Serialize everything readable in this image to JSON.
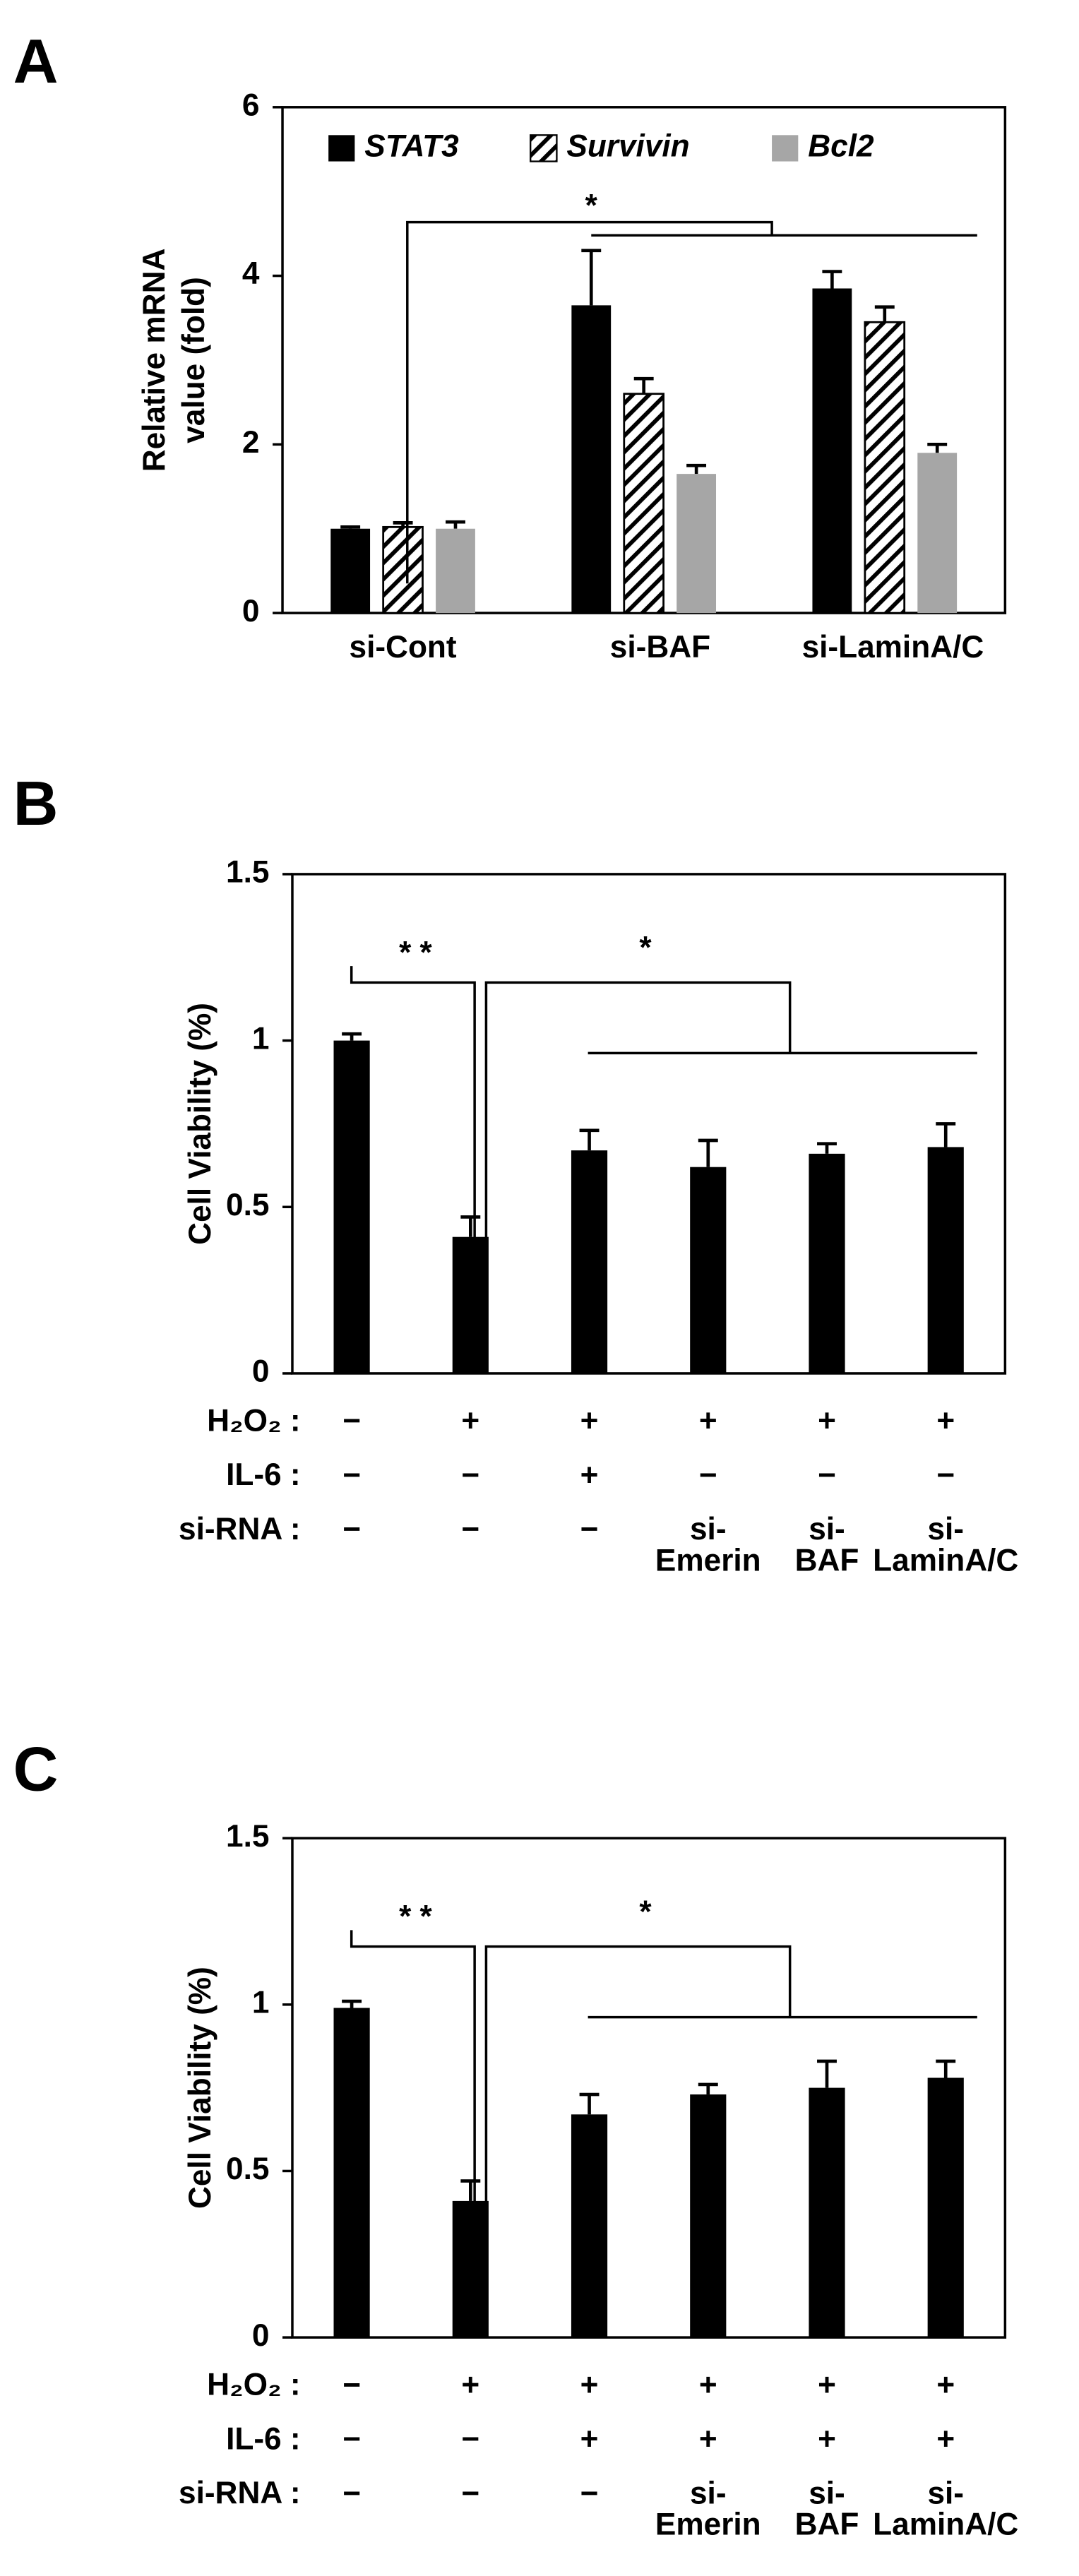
{
  "chart_data": [
    {
      "type": "bar",
      "panel_label": "A",
      "y_label": [
        "Relative mRNA",
        "value (fold)"
      ],
      "categories": [
        "si-Cont",
        "si-BAF",
        "si-LaminA/C"
      ],
      "series": [
        {
          "name": "STAT3",
          "color": "#000000",
          "values": [
            1.0,
            3.65,
            3.85
          ],
          "errors": [
            0.02,
            0.65,
            0.2
          ]
        },
        {
          "name": "Survivin",
          "color": "#ffffff",
          "hatch": true,
          "values": [
            1.02,
            2.6,
            3.45
          ],
          "errors": [
            0.05,
            0.18,
            0.18
          ]
        },
        {
          "name": "Bcl2",
          "color": "#a6a6a6",
          "values": [
            1.0,
            1.65,
            1.9
          ],
          "errors": [
            0.08,
            0.1,
            0.1
          ]
        }
      ],
      "ylim": [
        0,
        6
      ],
      "yticks": [
        0,
        2,
        4,
        6
      ],
      "legend": "top",
      "annotations": [
        "*"
      ]
    },
    {
      "type": "bar",
      "panel_label": "B",
      "y_label": [
        "Cell Viability (%)"
      ],
      "series": [
        {
          "color": "#000000",
          "values": [
            1.0,
            0.41,
            0.67,
            0.62,
            0.66,
            0.68
          ],
          "errors": [
            0.02,
            0.06,
            0.06,
            0.08,
            0.03,
            0.07
          ]
        }
      ],
      "ylim": [
        0,
        1.5
      ],
      "yticks": [
        0,
        0.5,
        1,
        1.5
      ],
      "annotations": [
        "* *",
        "*"
      ],
      "conditions": [
        {
          "label": "H₂O₂ :",
          "values": [
            [
              "−"
            ],
            [
              "+"
            ],
            [
              "+"
            ],
            [
              "+"
            ],
            [
              "+"
            ],
            [
              "+"
            ]
          ]
        },
        {
          "label": "IL-6 :",
          "values": [
            [
              "−"
            ],
            [
              "−"
            ],
            [
              "+"
            ],
            [
              "−"
            ],
            [
              "−"
            ],
            [
              "−"
            ]
          ]
        },
        {
          "label": "si-RNA :",
          "values": [
            [
              "−"
            ],
            [
              "−"
            ],
            [
              "−"
            ],
            [
              "si-",
              "Emerin"
            ],
            [
              "si-",
              "BAF"
            ],
            [
              "si-",
              "LaminA/C"
            ]
          ]
        }
      ]
    },
    {
      "type": "bar",
      "panel_label": "C",
      "y_label": [
        "Cell Viability (%)"
      ],
      "series": [
        {
          "color": "#000000",
          "values": [
            0.99,
            0.41,
            0.67,
            0.73,
            0.75,
            0.78
          ],
          "errors": [
            0.02,
            0.06,
            0.06,
            0.03,
            0.08,
            0.05
          ]
        }
      ],
      "ylim": [
        0,
        1.5
      ],
      "yticks": [
        0,
        0.5,
        1,
        1.5
      ],
      "annotations": [
        "* *",
        "*"
      ],
      "conditions": [
        {
          "label": "H₂O₂ :",
          "values": [
            [
              "−"
            ],
            [
              "+"
            ],
            [
              "+"
            ],
            [
              "+"
            ],
            [
              "+"
            ],
            [
              "+"
            ]
          ]
        },
        {
          "label": "IL-6 :",
          "values": [
            [
              "−"
            ],
            [
              "−"
            ],
            [
              "+"
            ],
            [
              "+"
            ],
            [
              "+"
            ],
            [
              "+"
            ]
          ]
        },
        {
          "label": "si-RNA :",
          "values": [
            [
              "−"
            ],
            [
              "−"
            ],
            [
              "−"
            ],
            [
              "si-",
              "Emerin"
            ],
            [
              "si-",
              "BAF"
            ],
            [
              "si-",
              "LaminA/C"
            ]
          ]
        }
      ]
    }
  ]
}
